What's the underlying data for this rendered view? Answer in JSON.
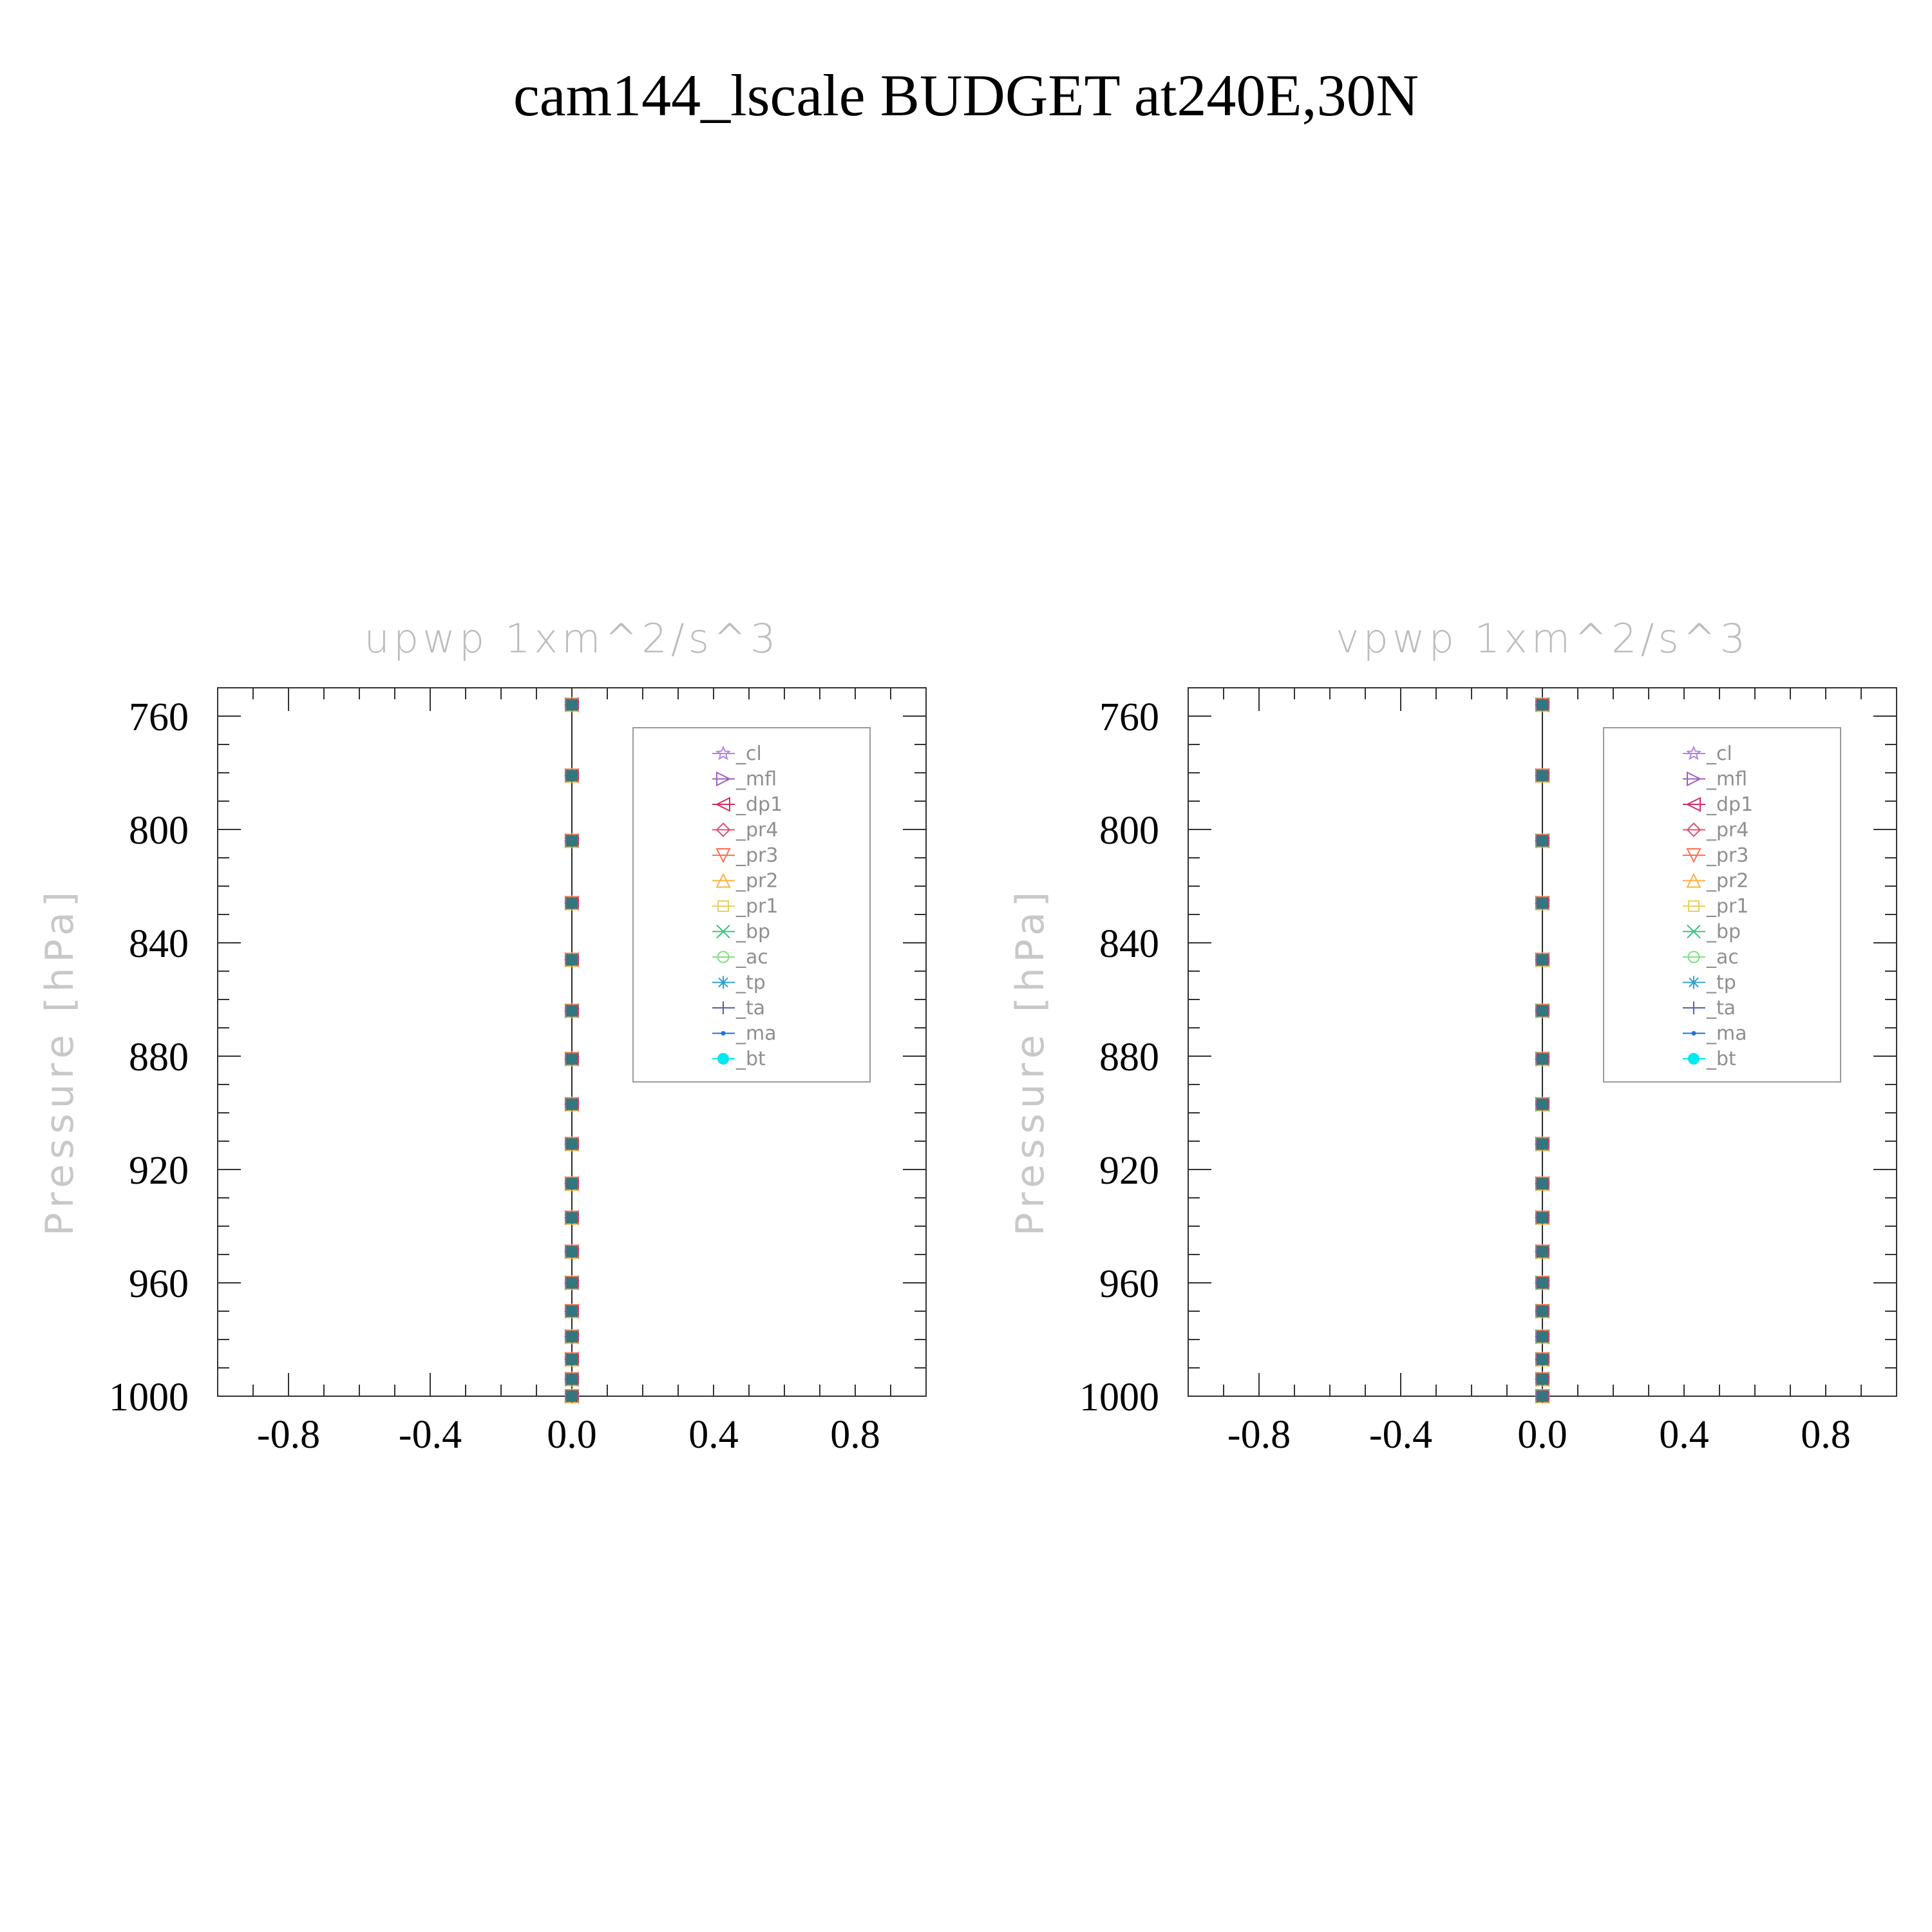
{
  "title": "cam144_lscale  BUDGET at240E,30N",
  "chart_data": [
    {
      "type": "line",
      "title": "upwp    1xm^2/s^3",
      "ylabel": "Pressure  [hPa]",
      "xlabel": "",
      "xlim": [
        -1.0,
        1.0
      ],
      "ylim": [
        1000,
        750
      ],
      "y_inverted": true,
      "xticks": [
        "-0.8",
        "-0.4",
        "0.0",
        "0.4",
        "0.8"
      ],
      "xtick_values": [
        -0.8,
        -0.4,
        0.0,
        0.4,
        0.8
      ],
      "yticks": [
        "760",
        "800",
        "840",
        "880",
        "920",
        "960",
        "1000"
      ],
      "ytick_values": [
        760,
        800,
        840,
        880,
        920,
        960,
        1000
      ],
      "legend_position": "top-right",
      "levels": [
        756,
        781,
        804,
        826,
        846,
        864,
        881,
        897,
        911,
        925,
        937,
        949,
        960,
        970,
        979,
        987,
        994,
        1000
      ],
      "series": [
        {
          "name": "_cl",
          "color": "#b085e0",
          "marker": "star",
          "value": 0.0
        },
        {
          "name": "_mfl",
          "color": "#a060c0",
          "marker": "triangle-right",
          "value": 0.0
        },
        {
          "name": "_dp1",
          "color": "#d03060",
          "marker": "triangle-left",
          "value": 0.0
        },
        {
          "name": "_pr4",
          "color": "#e05070",
          "marker": "diamond",
          "value": 0.0
        },
        {
          "name": "_pr3",
          "color": "#ff7050",
          "marker": "triangle-down",
          "value": 0.0
        },
        {
          "name": "_pr2",
          "color": "#ffb040",
          "marker": "triangle-up",
          "value": 0.0
        },
        {
          "name": "_pr1",
          "color": "#e8d060",
          "marker": "square",
          "value": 0.0
        },
        {
          "name": "_bp",
          "color": "#40c080",
          "marker": "x",
          "value": 0.0
        },
        {
          "name": "_ac",
          "color": "#80e080",
          "marker": "circle-open",
          "value": 0.0
        },
        {
          "name": "_tp",
          "color": "#30a0d0",
          "marker": "asterisk",
          "value": 0.0
        },
        {
          "name": "_ta",
          "color": "#5060b0",
          "marker": "plus",
          "value": 0.0
        },
        {
          "name": "_ma",
          "color": "#2070e0",
          "marker": "dot",
          "value": 0.0
        },
        {
          "name": "_bt",
          "color": "#00e8f0",
          "marker": "circle-filled",
          "value": 0.0
        }
      ]
    },
    {
      "type": "line",
      "title": "vpwp    1xm^2/s^3",
      "ylabel": "Pressure  [hPa]",
      "xlabel": "",
      "xlim": [
        -1.0,
        1.0
      ],
      "ylim": [
        1000,
        750
      ],
      "y_inverted": true,
      "xticks": [
        "-0.8",
        "-0.4",
        "0.0",
        "0.4",
        "0.8"
      ],
      "xtick_values": [
        -0.8,
        -0.4,
        0.0,
        0.4,
        0.8
      ],
      "yticks": [
        "760",
        "800",
        "840",
        "880",
        "920",
        "960",
        "1000"
      ],
      "ytick_values": [
        760,
        800,
        840,
        880,
        920,
        960,
        1000
      ],
      "legend_position": "top-right",
      "levels": [
        756,
        781,
        804,
        826,
        846,
        864,
        881,
        897,
        911,
        925,
        937,
        949,
        960,
        970,
        979,
        987,
        994,
        1000
      ],
      "series": [
        {
          "name": "_cl",
          "color": "#b085e0",
          "marker": "star",
          "value": 0.0
        },
        {
          "name": "_mfl",
          "color": "#a060c0",
          "marker": "triangle-right",
          "value": 0.0
        },
        {
          "name": "_dp1",
          "color": "#d03060",
          "marker": "triangle-left",
          "value": 0.0
        },
        {
          "name": "_pr4",
          "color": "#e05070",
          "marker": "diamond",
          "value": 0.0
        },
        {
          "name": "_pr3",
          "color": "#ff7050",
          "marker": "triangle-down",
          "value": 0.0
        },
        {
          "name": "_pr2",
          "color": "#ffb040",
          "marker": "triangle-up",
          "value": 0.0
        },
        {
          "name": "_pr1",
          "color": "#e8d060",
          "marker": "square",
          "value": 0.0
        },
        {
          "name": "_bp",
          "color": "#40c080",
          "marker": "x",
          "value": 0.0
        },
        {
          "name": "_ac",
          "color": "#80e080",
          "marker": "circle-open",
          "value": 0.0
        },
        {
          "name": "_tp",
          "color": "#30a0d0",
          "marker": "asterisk",
          "value": 0.0
        },
        {
          "name": "_ta",
          "color": "#5060b0",
          "marker": "plus",
          "value": 0.0
        },
        {
          "name": "_ma",
          "color": "#2070e0",
          "marker": "dot",
          "value": 0.0
        },
        {
          "name": "_bt",
          "color": "#00e8f0",
          "marker": "circle-filled",
          "value": 0.0
        }
      ]
    }
  ]
}
